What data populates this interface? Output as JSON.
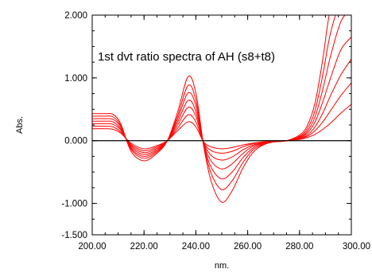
{
  "chart_data": {
    "type": "line",
    "title": "1st dvt ratio spectra of AH (s8+t8)",
    "xlabel": "nm.",
    "ylabel": "Abs.",
    "xlim": [
      200,
      300
    ],
    "ylim": [
      -1.5,
      2.0
    ],
    "x_ticks": [
      200,
      220,
      240,
      260,
      280,
      300
    ],
    "x_tick_labels": [
      "200.00",
      "220.00",
      "240.00",
      "260.00",
      "280.00",
      "300.00"
    ],
    "y_ticks": [
      2.0,
      1.0,
      0.0,
      -1.0,
      -1.5
    ],
    "y_tick_labels": [
      "2.000",
      "1.000",
      "0.000",
      "-1.000",
      "-1.500"
    ],
    "baseline": 0,
    "grid": false,
    "line_color": "#ff0000",
    "axis_color": "#000000",
    "x": [
      200,
      205,
      208,
      211,
      215,
      220,
      225,
      229,
      233,
      237,
      240,
      243,
      246,
      250,
      254,
      258,
      262,
      266,
      270,
      275,
      280,
      283,
      286,
      289,
      292,
      296,
      300
    ],
    "series": [
      {
        "values": [
          0.19,
          0.19,
          0.18,
          0.12,
          -0.04,
          -0.13,
          -0.08,
          0.0,
          0.16,
          0.3,
          0.22,
          -0.02,
          -0.1,
          -0.13,
          -0.11,
          -0.07,
          -0.04,
          -0.02,
          -0.01,
          0.0,
          0.02,
          0.05,
          0.1,
          0.18,
          0.28,
          0.44,
          0.58
        ]
      },
      {
        "values": [
          0.23,
          0.23,
          0.22,
          0.14,
          -0.06,
          -0.16,
          -0.1,
          0.0,
          0.2,
          0.41,
          0.3,
          -0.03,
          -0.16,
          -0.2,
          -0.17,
          -0.1,
          -0.05,
          -0.02,
          -0.01,
          0.0,
          0.03,
          0.07,
          0.16,
          0.3,
          0.48,
          0.72,
          0.92
        ]
      },
      {
        "values": [
          0.27,
          0.27,
          0.26,
          0.17,
          -0.08,
          -0.19,
          -0.12,
          0.0,
          0.25,
          0.53,
          0.39,
          -0.04,
          -0.24,
          -0.31,
          -0.26,
          -0.15,
          -0.07,
          -0.03,
          -0.01,
          0.0,
          0.04,
          0.09,
          0.22,
          0.44,
          0.72,
          1.05,
          1.3
        ]
      },
      {
        "values": [
          0.31,
          0.31,
          0.3,
          0.19,
          -0.1,
          -0.22,
          -0.14,
          0.0,
          0.3,
          0.64,
          0.47,
          -0.05,
          -0.33,
          -0.45,
          -0.37,
          -0.21,
          -0.09,
          -0.04,
          -0.01,
          0.0,
          0.05,
          0.12,
          0.3,
          0.62,
          1.0,
          1.45,
          1.65
        ]
      },
      {
        "values": [
          0.35,
          0.35,
          0.34,
          0.22,
          -0.12,
          -0.25,
          -0.16,
          0.0,
          0.35,
          0.76,
          0.56,
          -0.06,
          -0.43,
          -0.61,
          -0.5,
          -0.28,
          -0.12,
          -0.05,
          -0.02,
          0.0,
          0.06,
          0.15,
          0.38,
          0.82,
          1.35,
          1.9,
          2.1
        ]
      },
      {
        "values": [
          0.39,
          0.39,
          0.38,
          0.24,
          -0.14,
          -0.28,
          -0.18,
          0.0,
          0.4,
          0.88,
          0.65,
          -0.07,
          -0.53,
          -0.78,
          -0.64,
          -0.36,
          -0.15,
          -0.06,
          -0.02,
          0.0,
          0.07,
          0.19,
          0.48,
          1.05,
          1.72,
          2.2,
          2.2
        ]
      },
      {
        "values": [
          0.43,
          0.43,
          0.42,
          0.27,
          -0.17,
          -0.32,
          -0.2,
          0.0,
          0.46,
          1.02,
          0.76,
          -0.08,
          -0.66,
          -0.98,
          -0.8,
          -0.45,
          -0.19,
          -0.07,
          -0.02,
          0.0,
          0.09,
          0.24,
          0.6,
          1.3,
          2.1,
          2.2,
          2.2
        ]
      }
    ]
  }
}
